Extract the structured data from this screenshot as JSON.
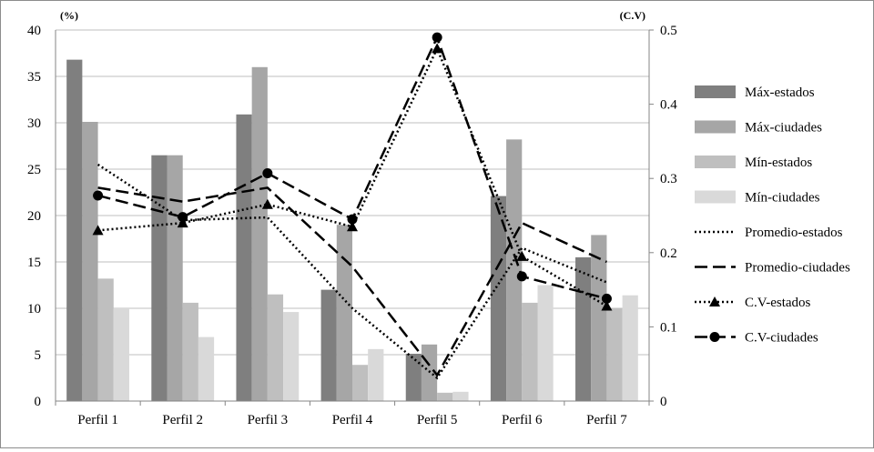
{
  "chart_data": {
    "type": "bar",
    "categories": [
      "Perfil 1",
      "Perfil 2",
      "Perfil 3",
      "Perfil 4",
      "Perfil 5",
      "Perfil 6",
      "Perfil 7"
    ],
    "left_axis": {
      "label": "(%)",
      "ylim": [
        0,
        40
      ],
      "ticks": [
        "0",
        "5",
        "10",
        "15",
        "20",
        "25",
        "30",
        "35",
        "40"
      ]
    },
    "right_axis": {
      "label": "(C.V)",
      "ylim": [
        0,
        0.5
      ],
      "ticks": [
        "0",
        "0.1",
        "0.2",
        "0.3",
        "0.4",
        "0.5"
      ]
    },
    "bar_series": [
      {
        "name": "Máx-estados",
        "color": "#7f7f7f",
        "values": [
          36.8,
          26.5,
          30.9,
          12.0,
          5.1,
          22.1,
          15.5
        ]
      },
      {
        "name": "Máx-ciudades",
        "color": "#a6a6a6",
        "values": [
          30.1,
          26.5,
          36.0,
          19.0,
          6.1,
          28.2,
          17.9
        ]
      },
      {
        "name": "Mín-estados",
        "color": "#bfbfbf",
        "values": [
          13.2,
          10.6,
          11.5,
          3.9,
          0.9,
          10.6,
          10.0
        ]
      },
      {
        "name": "Mín-ciudades",
        "color": "#d9d9d9",
        "values": [
          10.0,
          6.9,
          9.6,
          5.6,
          1.0,
          12.5,
          11.4
        ]
      }
    ],
    "line_series": [
      {
        "name": "Promedio-estados",
        "style": "dotted",
        "axis": "left",
        "values": [
          25.5,
          19.5,
          19.8,
          10.0,
          2.5,
          16.5,
          12.8
        ]
      },
      {
        "name": "Promedio-ciudades",
        "style": "dashed",
        "axis": "left",
        "values": [
          23.0,
          21.5,
          23.0,
          14.5,
          2.8,
          19.2,
          15.0
        ]
      },
      {
        "name": "C.V-estados",
        "style": "dotted",
        "marker": "triangle",
        "axis": "right",
        "values": [
          0.23,
          0.24,
          0.265,
          0.235,
          0.475,
          0.195,
          0.128
        ]
      },
      {
        "name": "C.V-ciudades",
        "style": "dashed",
        "marker": "circle",
        "axis": "right",
        "values": [
          0.277,
          0.248,
          0.307,
          0.245,
          0.49,
          0.168,
          0.138
        ]
      }
    ],
    "grid": "horizontal",
    "legend_position": "right"
  }
}
